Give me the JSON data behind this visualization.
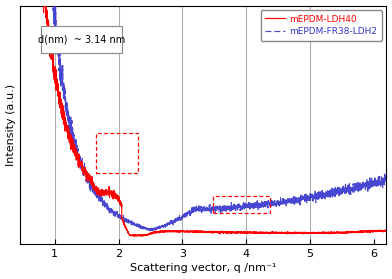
{
  "title": "",
  "xlabel": "Scattering vector, q /nm⁻¹",
  "ylabel": "Intensity (a.u.)",
  "xlim": [
    0.45,
    6.2
  ],
  "annotation_text": "d(nm)  ~ 3.14 nm",
  "vlines": [
    1.0,
    2.0,
    3.0,
    4.0,
    5.0
  ],
  "legend_entries": [
    "mEPDM-LDH40",
    "mEPDM-FR38-LDH2"
  ],
  "line1_color": "#ff0000",
  "line2_color": "#3333cc",
  "dotted_box_color": "#ff0000",
  "background_color": "#ffffff",
  "grid_color": "#999999",
  "ylim": [
    0,
    10.5
  ]
}
